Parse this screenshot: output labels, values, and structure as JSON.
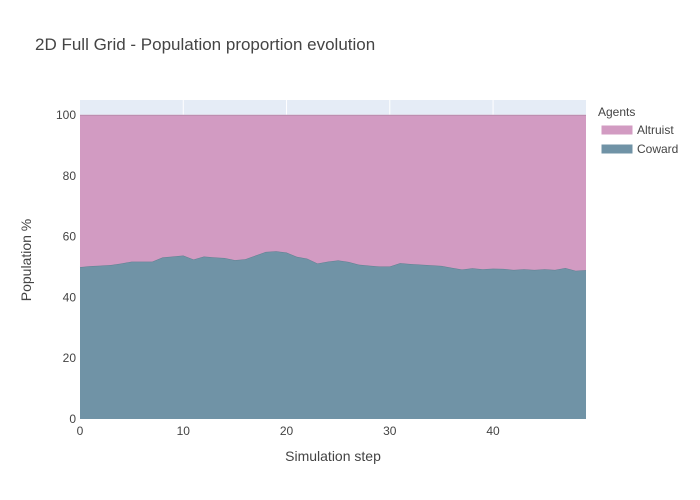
{
  "chart_data": {
    "type": "area",
    "stacked": true,
    "title": "2D Full Grid - Population proportion evolution",
    "xlabel": "Simulation step",
    "ylabel": "Population %",
    "xlim": [
      0,
      49
    ],
    "ylim": [
      0,
      105
    ],
    "x_ticks": [
      0,
      10,
      20,
      30,
      40
    ],
    "y_ticks": [
      0,
      20,
      40,
      60,
      80,
      100
    ],
    "grid": true,
    "legend_title": "Agents",
    "legend_position": "top-right",
    "x": [
      0,
      1,
      2,
      3,
      4,
      5,
      6,
      7,
      8,
      9,
      10,
      11,
      12,
      13,
      14,
      15,
      16,
      17,
      18,
      19,
      20,
      21,
      22,
      23,
      24,
      25,
      26,
      27,
      28,
      29,
      30,
      31,
      32,
      33,
      34,
      35,
      36,
      37,
      38,
      39,
      40,
      41,
      42,
      43,
      44,
      45,
      46,
      47,
      48,
      49
    ],
    "series": [
      {
        "name": "Coward",
        "color": "#7093a6",
        "values": [
          50.0,
          50.3,
          50.5,
          50.7,
          51.2,
          51.8,
          51.8,
          51.8,
          53.2,
          53.5,
          53.8,
          52.5,
          53.5,
          53.2,
          53.0,
          52.3,
          52.6,
          53.8,
          55.0,
          55.2,
          54.8,
          53.4,
          52.8,
          51.2,
          51.8,
          52.2,
          51.7,
          50.8,
          50.5,
          50.2,
          50.2,
          51.3,
          51.0,
          50.8,
          50.6,
          50.4,
          49.8,
          49.2,
          49.6,
          49.3,
          49.5,
          49.4,
          49.1,
          49.3,
          49.1,
          49.3,
          49.1,
          49.7,
          48.8,
          49.0
        ]
      },
      {
        "name": "Altruist",
        "color": "#d29bc2",
        "values": [
          50.0,
          49.7,
          49.5,
          49.3,
          48.8,
          48.2,
          48.2,
          48.2,
          46.8,
          46.5,
          46.2,
          47.5,
          46.5,
          46.8,
          47.0,
          47.7,
          47.4,
          46.2,
          45.0,
          44.8,
          45.2,
          46.6,
          47.2,
          48.8,
          48.2,
          47.8,
          48.3,
          49.2,
          49.5,
          49.8,
          49.8,
          48.7,
          49.0,
          49.2,
          49.4,
          49.6,
          50.2,
          50.8,
          50.4,
          50.7,
          50.5,
          50.6,
          50.9,
          50.7,
          50.9,
          50.7,
          50.9,
          50.3,
          51.2,
          51.0
        ]
      }
    ]
  }
}
